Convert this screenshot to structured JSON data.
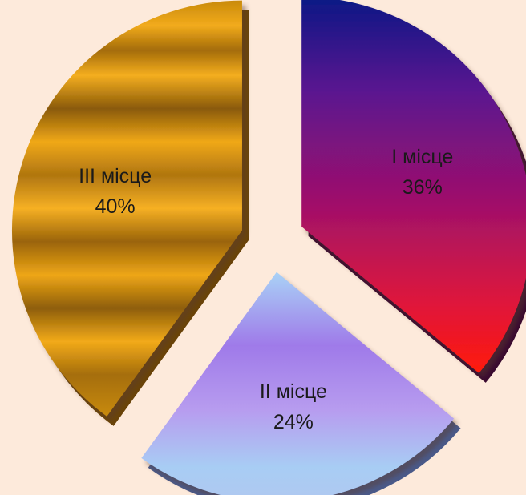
{
  "chart_data": {
    "type": "pie",
    "title": "",
    "categories": [
      "I місце",
      "II місце",
      "III місце"
    ],
    "values": [
      36,
      24,
      40
    ],
    "value_labels": [
      "36%",
      "24%",
      "40%"
    ],
    "exploded": true,
    "legend": "none",
    "colors": {
      "I місце": [
        "#0b1a85",
        "#5a1490",
        "#a0106a",
        "#e0183a",
        "#ff1a0c"
      ],
      "II місце": [
        "#a9d2f6",
        "#a07be8",
        "#b79cef",
        "#a8cdf4"
      ],
      "III місце": [
        "#c98a0a",
        "#f0a818",
        "#8a5a08"
      ]
    }
  }
}
